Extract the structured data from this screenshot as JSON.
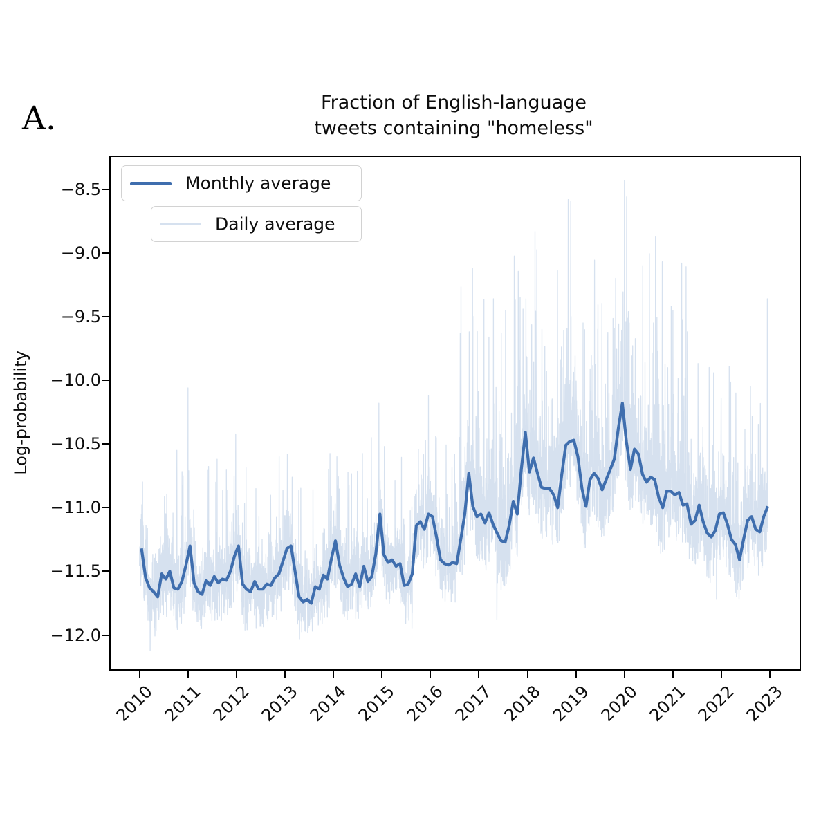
{
  "panel_label": "A.",
  "title": {
    "line1": "Fraction of English-language",
    "line2": "tweets containing \"homeless\""
  },
  "axes": {
    "ylabel": "Log-probability"
  },
  "legend": {
    "monthly_label": "Monthly average",
    "daily_label": "Daily average"
  },
  "colors": {
    "monthly_line": "#3f6eae",
    "daily_line": "#d6e1ef",
    "axis": "#000000",
    "text": "#0d0d0d"
  },
  "chart_data": {
    "type": "line",
    "title": "Fraction of English-language tweets containing \"homeless\"",
    "xlabel": "",
    "ylabel": "Log-probability",
    "grid": false,
    "legend_position": "upper left",
    "xlim": [
      2009.37,
      2023.64
    ],
    "ylim": [
      -12.29,
      -8.24
    ],
    "x_tick_years": [
      2010,
      2011,
      2012,
      2013,
      2014,
      2015,
      2016,
      2017,
      2018,
      2019,
      2020,
      2021,
      2022,
      2023
    ],
    "y_tick_values": [
      -8.5,
      -9.0,
      -9.5,
      -10.0,
      -10.5,
      -11.0,
      -11.5,
      -12.0
    ],
    "series": [
      {
        "name": "Monthly average",
        "style": "solid",
        "start_year": 2010,
        "points_per_year": 12,
        "month_center_offset": true,
        "values": [
          -11.32,
          -11.55,
          -11.63,
          -11.66,
          -11.7,
          -11.52,
          -11.56,
          -11.5,
          -11.63,
          -11.64,
          -11.58,
          -11.45,
          -11.3,
          -11.59,
          -11.66,
          -11.68,
          -11.57,
          -11.61,
          -11.54,
          -11.59,
          -11.56,
          -11.57,
          -11.5,
          -11.38,
          -11.3,
          -11.6,
          -11.64,
          -11.66,
          -11.58,
          -11.64,
          -11.64,
          -11.6,
          -11.61,
          -11.55,
          -11.52,
          -11.42,
          -11.32,
          -11.3,
          -11.5,
          -11.7,
          -11.74,
          -11.72,
          -11.75,
          -11.62,
          -11.64,
          -11.53,
          -11.56,
          -11.4,
          -11.26,
          -11.45,
          -11.55,
          -11.62,
          -11.6,
          -11.52,
          -11.62,
          -11.46,
          -11.58,
          -11.54,
          -11.36,
          -11.05,
          -11.37,
          -11.43,
          -11.41,
          -11.46,
          -11.44,
          -11.61,
          -11.6,
          -11.52,
          -11.14,
          -11.11,
          -11.17,
          -11.05,
          -11.07,
          -11.23,
          -11.41,
          -11.44,
          -11.45,
          -11.43,
          -11.44,
          -11.25,
          -11.05,
          -10.73,
          -10.99,
          -11.07,
          -11.05,
          -11.12,
          -11.04,
          -11.13,
          -11.2,
          -11.26,
          -11.27,
          -11.14,
          -10.95,
          -11.05,
          -10.7,
          -10.41,
          -10.72,
          -10.61,
          -10.73,
          -10.84,
          -10.85,
          -10.85,
          -10.9,
          -11.0,
          -10.74,
          -10.51,
          -10.48,
          -10.47,
          -10.6,
          -10.85,
          -10.99,
          -10.78,
          -10.73,
          -10.77,
          -10.86,
          -10.78,
          -10.7,
          -10.62,
          -10.38,
          -10.18,
          -10.48,
          -10.7,
          -10.54,
          -10.58,
          -10.74,
          -10.8,
          -10.76,
          -10.78,
          -10.92,
          -11.0,
          -10.87,
          -10.87,
          -10.9,
          -10.88,
          -10.98,
          -10.97,
          -11.13,
          -11.1,
          -10.98,
          -11.11,
          -11.2,
          -11.23,
          -11.18,
          -11.05,
          -11.04,
          -11.13,
          -11.25,
          -11.29,
          -11.41,
          -11.25,
          -11.1,
          -11.07,
          -11.17,
          -11.19,
          -11.07,
          -10.99
        ]
      },
      {
        "name": "Daily average",
        "style": "solid",
        "synthesized_noise_band": true,
        "start": 2010.0,
        "end": 2022.96,
        "step_years": 0.00274,
        "seed": 7,
        "noise_eras": [
          {
            "until": 2016.6,
            "jitter": 0.15,
            "dip": 0.35,
            "up_prob": 0.1,
            "up_mean": 0.32,
            "cap": 0.95
          },
          {
            "until": 2021.3,
            "jitter": 0.22,
            "dip": 0.4,
            "up_prob": 0.22,
            "up_mean": 0.5,
            "cap": 2.0
          },
          {
            "until": 2023.0,
            "jitter": 0.2,
            "dip": 0.38,
            "up_prob": 0.14,
            "up_mean": 0.38,
            "cap": 1.3
          }
        ],
        "notable_spikes": [
          [
            2010.22,
            -12.12
          ],
          [
            2010.77,
            -10.55
          ],
          [
            2010.9,
            -10.75
          ],
          [
            2011.0,
            -10.06
          ],
          [
            2011.28,
            -11.95
          ],
          [
            2011.6,
            -10.62
          ],
          [
            2011.95,
            -10.75
          ],
          [
            2012.4,
            -10.85
          ],
          [
            2012.88,
            -10.6
          ],
          [
            2013.05,
            -10.58
          ],
          [
            2013.42,
            -11.97
          ],
          [
            2013.9,
            -10.7
          ],
          [
            2014.3,
            -10.72
          ],
          [
            2014.78,
            -10.45
          ],
          [
            2015.05,
            -10.52
          ],
          [
            2015.62,
            -11.95
          ],
          [
            2015.9,
            -10.47
          ],
          [
            2016.12,
            -10.45
          ],
          [
            2016.5,
            -10.58
          ],
          [
            2016.8,
            -9.62
          ],
          [
            2016.87,
            -9.12
          ],
          [
            2017.3,
            -9.36
          ],
          [
            2017.37,
            -11.88
          ],
          [
            2017.55,
            -9.45
          ],
          [
            2017.75,
            -9.37
          ],
          [
            2017.85,
            -9.35
          ],
          [
            2017.97,
            -9.36
          ],
          [
            2018.3,
            -9.6
          ],
          [
            2018.62,
            -9.14
          ],
          [
            2018.9,
            -9.5
          ],
          [
            2019.15,
            -9.55
          ],
          [
            2019.45,
            -9.6
          ],
          [
            2019.82,
            -9.2
          ],
          [
            2020.0,
            -8.43
          ],
          [
            2020.1,
            -9.55
          ],
          [
            2020.38,
            -9.1
          ],
          [
            2020.6,
            -9.55
          ],
          [
            2021.0,
            -9.45
          ],
          [
            2021.3,
            -9.62
          ],
          [
            2021.75,
            -9.9
          ],
          [
            2021.9,
            -11.72
          ],
          [
            2022.3,
            -10.1
          ],
          [
            2022.6,
            -10.05
          ],
          [
            2022.95,
            -9.36
          ]
        ]
      }
    ]
  }
}
